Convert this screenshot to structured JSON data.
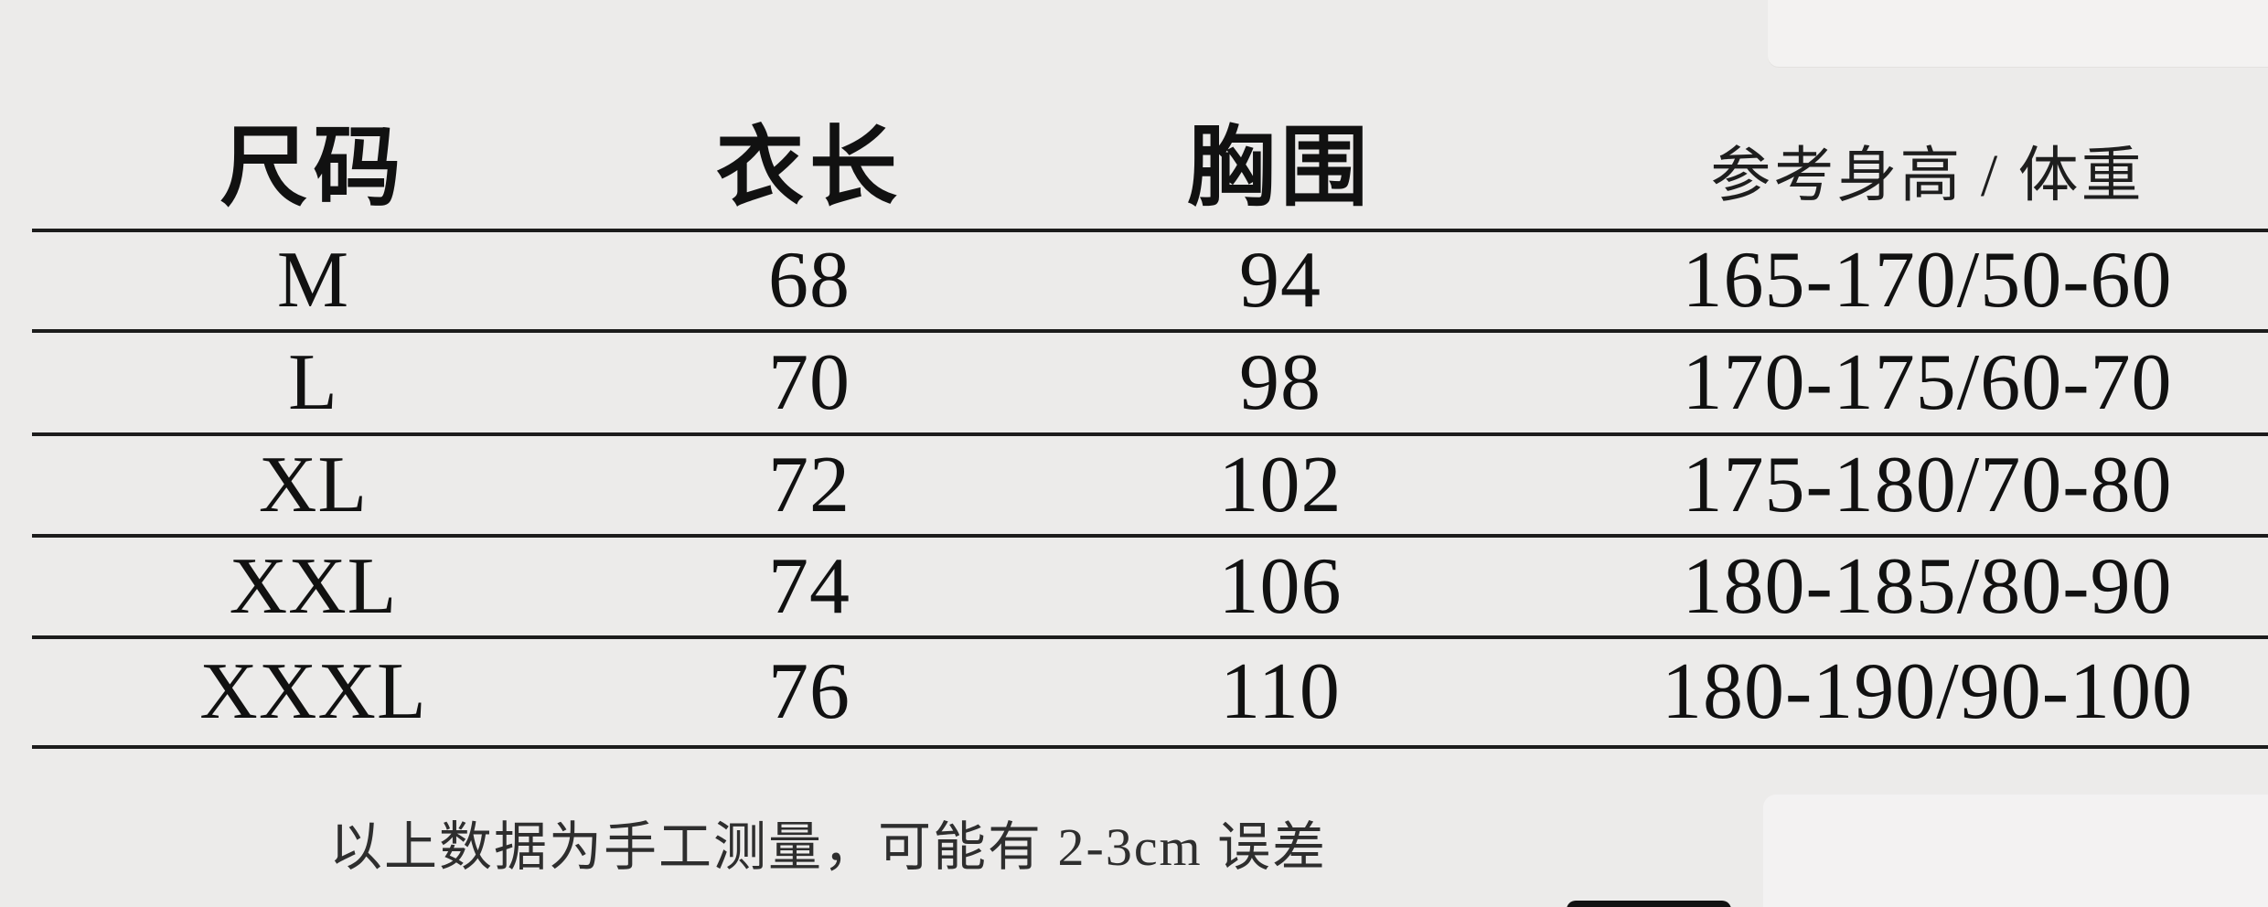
{
  "chart_data": {
    "type": "table",
    "columns": [
      "尺码",
      "衣长",
      "胸围",
      "参考身高 / 体重"
    ],
    "rows": [
      [
        "M",
        "68",
        "94",
        "165-170/50-60"
      ],
      [
        "L",
        "70",
        "98",
        "170-175/60-70"
      ],
      [
        "XL",
        "72",
        "102",
        "175-180/70-80"
      ],
      [
        "XXL",
        "74",
        "106",
        "180-185/80-90"
      ],
      [
        "XXXL",
        "76",
        "110",
        "180-190/90-100"
      ]
    ],
    "note": "以上数据为手工测量，可能有 2-3cm 误差",
    "layout": {
      "grid": "horizontal-rules-only",
      "rule_count": 6
    }
  },
  "colors": {
    "background": "#ecebea",
    "rule_line": "#1c1c1c",
    "text": "#111111",
    "adjacent_panel": "#f3f2f1",
    "peek_tab": "#121212"
  }
}
